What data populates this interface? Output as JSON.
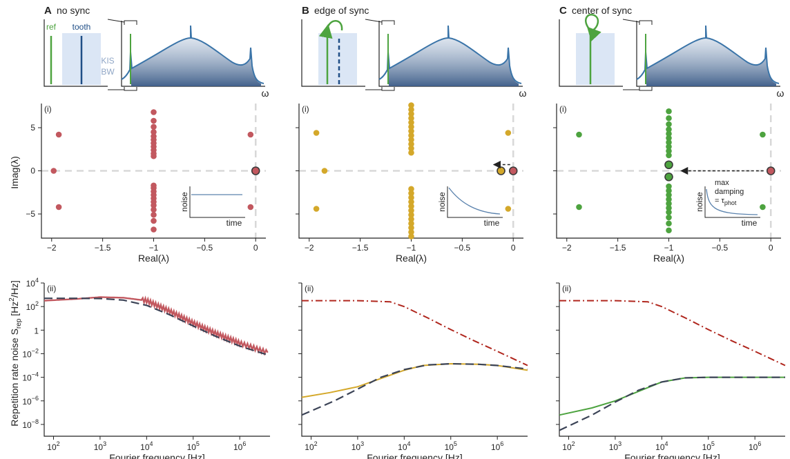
{
  "colors": {
    "panelA": "#c2585f",
    "panelB": "#d4a82a",
    "panelC": "#4da33f",
    "ref": "#4da33f",
    "tooth": "#1f4e86",
    "spectrum": "#3a74a8",
    "bw_box": "#dbe6f5",
    "axis": "#222222",
    "zero_line": "#d8d8d8",
    "dashed_model": "#3b4356",
    "dashdot": "#b0261d",
    "inset_curve": "#5a82ad"
  },
  "icons": [
    "curved-arrow-icon",
    "loop-arrow-icon",
    "dashed-arrow-icon"
  ],
  "shared": {
    "omega": "ω",
    "ref_label": "ref",
    "tooth_label": "tooth",
    "kis_label_1": "KIS",
    "kis_label_2": "BW",
    "eig_xlabel": "Real(λ)",
    "eig_ylabel": "Imag(λ)",
    "noise_xlabel": "Fourier frequency [Hz]",
    "noise_ylabel_main": "Repetition rate noise S",
    "noise_ylabel_sub": "rep",
    "noise_ylabel_unit1": " [Hz",
    "noise_ylabel_sup": "2",
    "noise_ylabel_unit2": "/Hz]",
    "sub_i": "(i)",
    "sub_ii": "(ii)",
    "inset_x": "time",
    "inset_y": "noise",
    "inset_c_line1": "max",
    "inset_c_line2": "damping",
    "inset_c_line3_pre": "= τ",
    "inset_c_line3_sub": "phot",
    "eig_xticks": [
      "−2",
      "−1.5",
      "−1",
      "−0.5",
      "0"
    ],
    "eig_yticks": [
      "5",
      "0",
      "−5"
    ],
    "noise_xticks": [
      {
        "base": "10",
        "exp": "2"
      },
      {
        "base": "10",
        "exp": "3"
      },
      {
        "base": "10",
        "exp": "4"
      },
      {
        "base": "10",
        "exp": "5"
      },
      {
        "base": "10",
        "exp": "6"
      }
    ],
    "noise_yticks": [
      {
        "base": "10",
        "exp": "4"
      },
      {
        "base": "10",
        "exp": "2"
      },
      {
        "base": "1",
        "exp": ""
      },
      {
        "base": "10",
        "exp": "-2"
      },
      {
        "base": "10",
        "exp": "-4"
      },
      {
        "base": "10",
        "exp": "-6"
      },
      {
        "base": "10",
        "exp": "-8"
      }
    ]
  },
  "panels": [
    {
      "letter": "A",
      "title": "no sync"
    },
    {
      "letter": "B",
      "title": "edge of sync"
    },
    {
      "letter": "C",
      "title": "center of sync"
    }
  ],
  "chart_data": [
    {
      "type": "scatter",
      "panel": "A",
      "xlim": [
        -2.1,
        0.1
      ],
      "ylim": [
        -7.8,
        7.8
      ],
      "points": [
        [
          -1.93,
          4.2
        ],
        [
          -1.93,
          -4.2
        ],
        [
          -1.98,
          0
        ],
        [
          -0.05,
          4.2
        ],
        [
          -0.05,
          -4.2
        ],
        [
          -1,
          6.8
        ],
        [
          -1,
          5.8
        ],
        [
          -1,
          5.1
        ],
        [
          -1,
          4.5
        ],
        [
          -1,
          4.0
        ],
        [
          -1,
          3.6
        ],
        [
          -1,
          3.2
        ],
        [
          -1,
          2.8
        ],
        [
          -1,
          2.4
        ],
        [
          -1,
          2.0
        ],
        [
          -1,
          1.7
        ],
        [
          -1,
          -1.7
        ],
        [
          -1,
          -2.0
        ],
        [
          -1,
          -2.4
        ],
        [
          -1,
          -2.8
        ],
        [
          -1,
          -3.2
        ],
        [
          -1,
          -3.6
        ],
        [
          -1,
          -4.0
        ],
        [
          -1,
          -4.5
        ],
        [
          -1,
          -5.1
        ],
        [
          -1,
          -5.8
        ],
        [
          -1,
          -6.8
        ]
      ],
      "highlight": [
        [
          0,
          0
        ]
      ],
      "arrow": null,
      "inset": "flat"
    },
    {
      "type": "scatter",
      "panel": "B",
      "xlim": [
        -2.1,
        0.1
      ],
      "ylim": [
        -7.8,
        7.8
      ],
      "points": [
        [
          -1.93,
          4.4
        ],
        [
          -1.93,
          -4.4
        ],
        [
          -1.85,
          0
        ],
        [
          -0.05,
          4.4
        ],
        [
          -0.05,
          -4.4
        ],
        [
          -1,
          7.6
        ],
        [
          -1,
          7.1
        ],
        [
          -1,
          6.6
        ],
        [
          -1,
          6.1
        ],
        [
          -1,
          5.6
        ],
        [
          -1,
          5.1
        ],
        [
          -1,
          4.6
        ],
        [
          -1,
          4.1
        ],
        [
          -1,
          3.6
        ],
        [
          -1,
          3.1
        ],
        [
          -1,
          2.6
        ],
        [
          -1,
          2.1
        ],
        [
          -1,
          -2.1
        ],
        [
          -1,
          -2.6
        ],
        [
          -1,
          -3.1
        ],
        [
          -1,
          -3.6
        ],
        [
          -1,
          -4.1
        ],
        [
          -1,
          -4.6
        ],
        [
          -1,
          -5.1
        ],
        [
          -1,
          -5.6
        ],
        [
          -1,
          -6.1
        ],
        [
          -1,
          -6.6
        ],
        [
          -1,
          -7.1
        ],
        [
          -1,
          -7.6
        ]
      ],
      "highlight": [
        [
          -0.12,
          0
        ],
        [
          0,
          0
        ]
      ],
      "arrow": [
        [
          -0.03,
          0.7
        ],
        [
          -0.18,
          0.7
        ]
      ],
      "inset": "decay"
    },
    {
      "type": "scatter",
      "panel": "C",
      "xlim": [
        -2.1,
        0.1
      ],
      "ylim": [
        -7.8,
        7.8
      ],
      "points": [
        [
          -1.88,
          4.2
        ],
        [
          -1.88,
          -4.2
        ],
        [
          -0.08,
          4.2
        ],
        [
          -0.08,
          -4.2
        ],
        [
          -1,
          6.9
        ],
        [
          -1,
          6.1
        ],
        [
          -1,
          5.4
        ],
        [
          -1,
          4.8
        ],
        [
          -1,
          4.3
        ],
        [
          -1,
          3.8
        ],
        [
          -1,
          3.3
        ],
        [
          -1,
          2.8
        ],
        [
          -1,
          2.3
        ],
        [
          -1,
          1.8
        ],
        [
          -1,
          -1.8
        ],
        [
          -1,
          -2.3
        ],
        [
          -1,
          -2.8
        ],
        [
          -1,
          -3.3
        ],
        [
          -1,
          -3.8
        ],
        [
          -1,
          -4.3
        ],
        [
          -1,
          -4.8
        ],
        [
          -1,
          -5.4
        ],
        [
          -1,
          -6.1
        ],
        [
          -1,
          -6.9
        ]
      ],
      "highlight": [
        [
          -1,
          0.7
        ],
        [
          -1,
          -0.7
        ],
        [
          0,
          0
        ]
      ],
      "arrow": [
        [
          -0.03,
          0
        ],
        [
          -0.95,
          0
        ]
      ],
      "inset": "fast"
    },
    {
      "type": "line",
      "panel": "A",
      "xlog": true,
      "ylog": true,
      "xlim": [
        1.8,
        6.65
      ],
      "ylim": [
        -9,
        4
      ],
      "series": [
        {
          "style": "noisy",
          "points": [
            [
              1.8,
              2.5
            ],
            [
              2.5,
              2.65
            ],
            [
              3.0,
              2.8
            ],
            [
              3.5,
              2.75
            ],
            [
              4.0,
              2.5
            ],
            [
              4.5,
              1.6
            ],
            [
              5.0,
              0.6
            ],
            [
              5.5,
              -0.3
            ],
            [
              6.0,
              -1.1
            ],
            [
              6.6,
              -1.9
            ]
          ]
        },
        {
          "style": "dashed",
          "points": [
            [
              1.8,
              2.7
            ],
            [
              2.5,
              2.7
            ],
            [
              3.0,
              2.68
            ],
            [
              3.5,
              2.55
            ],
            [
              4.0,
              2.1
            ],
            [
              4.5,
              1.3
            ],
            [
              5.0,
              0.35
            ],
            [
              5.5,
              -0.55
            ],
            [
              6.0,
              -1.35
            ],
            [
              6.6,
              -2.1
            ]
          ]
        }
      ]
    },
    {
      "type": "line",
      "panel": "B",
      "xlog": true,
      "ylog": true,
      "xlim": [
        1.8,
        6.65
      ],
      "ylim": [
        -9,
        4
      ],
      "series": [
        {
          "style": "dashdot",
          "points": [
            [
              1.8,
              2.5
            ],
            [
              3.0,
              2.5
            ],
            [
              3.7,
              2.4
            ],
            [
              4.0,
              2.0
            ],
            [
              4.5,
              1.05
            ],
            [
              5.0,
              0.05
            ],
            [
              5.5,
              -0.9
            ],
            [
              6.0,
              -1.8
            ],
            [
              6.65,
              -3.0
            ]
          ]
        },
        {
          "style": "solid",
          "points": [
            [
              1.8,
              -5.7
            ],
            [
              2.4,
              -5.3
            ],
            [
              3.0,
              -4.8
            ],
            [
              3.5,
              -4.1
            ],
            [
              4.0,
              -3.4
            ],
            [
              4.4,
              -3.0
            ],
            [
              5.0,
              -2.85
            ],
            [
              5.6,
              -2.9
            ],
            [
              6.0,
              -3.0
            ],
            [
              6.65,
              -3.4
            ]
          ]
        },
        {
          "style": "dashed",
          "points": [
            [
              1.8,
              -7.2
            ],
            [
              2.5,
              -6.0
            ],
            [
              3.0,
              -5.0
            ],
            [
              3.5,
              -4.0
            ],
            [
              4.0,
              -3.35
            ],
            [
              4.5,
              -2.95
            ],
            [
              5.0,
              -2.85
            ],
            [
              5.6,
              -2.9
            ],
            [
              6.0,
              -3.0
            ],
            [
              6.65,
              -3.3
            ]
          ]
        }
      ]
    },
    {
      "type": "line",
      "panel": "C",
      "xlog": true,
      "ylog": true,
      "xlim": [
        1.8,
        6.65
      ],
      "ylim": [
        -9,
        4
      ],
      "series": [
        {
          "style": "dashdot",
          "points": [
            [
              1.8,
              2.5
            ],
            [
              3.0,
              2.5
            ],
            [
              3.7,
              2.4
            ],
            [
              4.0,
              2.0
            ],
            [
              4.5,
              1.05
            ],
            [
              5.0,
              0.05
            ],
            [
              5.5,
              -0.9
            ],
            [
              6.0,
              -1.8
            ],
            [
              6.65,
              -3.0
            ]
          ]
        },
        {
          "style": "solid",
          "points": [
            [
              1.8,
              -7.2
            ],
            [
              2.5,
              -6.6
            ],
            [
              3.0,
              -6.0
            ],
            [
              3.5,
              -5.2
            ],
            [
              4.0,
              -4.4
            ],
            [
              4.5,
              -4.05
            ],
            [
              5.0,
              -4.0
            ],
            [
              5.6,
              -4.0
            ],
            [
              6.0,
              -4.0
            ],
            [
              6.65,
              -4.0
            ]
          ]
        },
        {
          "style": "dashed",
          "points": [
            [
              1.8,
              -8.5
            ],
            [
              2.5,
              -7.2
            ],
            [
              3.0,
              -6.1
            ],
            [
              3.5,
              -5.1
            ],
            [
              4.0,
              -4.4
            ],
            [
              4.5,
              -4.05
            ],
            [
              5.0,
              -4.0
            ],
            [
              5.6,
              -4.0
            ],
            [
              6.0,
              -4.0
            ],
            [
              6.65,
              -4.0
            ]
          ]
        }
      ]
    }
  ]
}
